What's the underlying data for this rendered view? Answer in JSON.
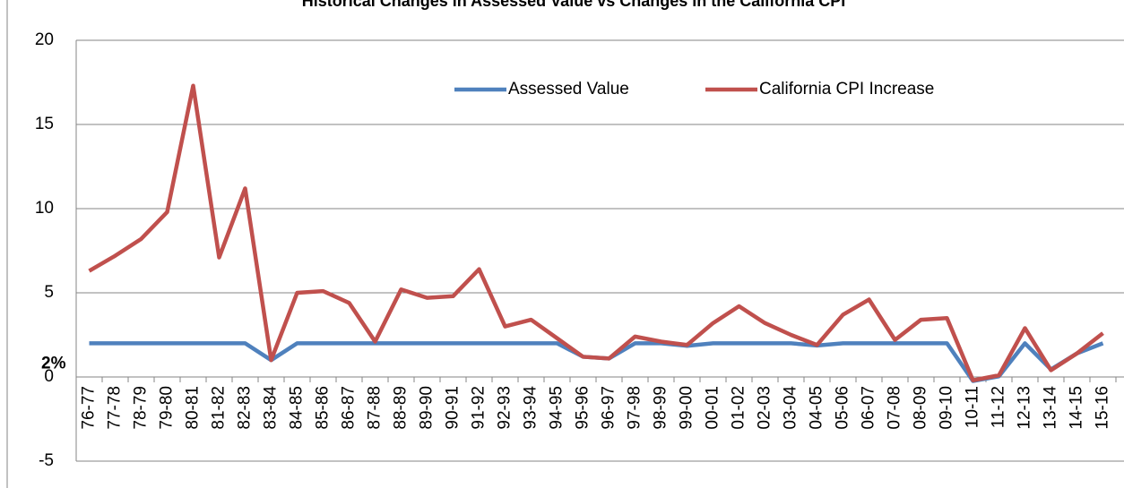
{
  "chart_data": {
    "type": "line",
    "title": "Historical Changes in Assessed Value vs Changes in the California CPI",
    "annotations": [
      "2%"
    ],
    "categories": [
      "76-77",
      "77-78",
      "78-79",
      "79-80",
      "80-81",
      "81-82",
      "82-83",
      "83-84",
      "84-85",
      "85-86",
      "86-87",
      "87-88",
      "88-89",
      "89-90",
      "90-91",
      "91-92",
      "92-93",
      "93-94",
      "94-95",
      "95-96",
      "96-97",
      "97-98",
      "98-99",
      "99-00",
      "00-01",
      "01-02",
      "02-03",
      "03-04",
      "04-05",
      "05-06",
      "06-07",
      "07-08",
      "08-09",
      "09-10",
      "10-11",
      "11-12",
      "12-13",
      "13-14",
      "14-15",
      "15-16"
    ],
    "series": [
      {
        "name": "Assessed Value",
        "color": "#4f81bd",
        "values": [
          2,
          2,
          2,
          2,
          2,
          2,
          2,
          1,
          2,
          2,
          2,
          2,
          2,
          2,
          2,
          2,
          2,
          2,
          2,
          1.2,
          1.1,
          2,
          2,
          1.85,
          2,
          2,
          2,
          2,
          1.87,
          2,
          2,
          2,
          2,
          2,
          -0.24,
          0.04,
          2,
          0.45,
          1.4,
          2
        ]
      },
      {
        "name": "California CPI Increase",
        "color": "#c0504d",
        "values": [
          6.3,
          7.2,
          8.2,
          9.8,
          17.3,
          7.1,
          11.2,
          1.0,
          5.0,
          5.1,
          4.4,
          2.1,
          5.2,
          4.7,
          4.8,
          6.4,
          3.0,
          3.4,
          2.3,
          1.2,
          1.1,
          2.4,
          2.1,
          1.9,
          3.2,
          4.2,
          3.2,
          2.5,
          1.9,
          3.7,
          4.6,
          2.2,
          3.4,
          3.5,
          -0.2,
          0.1,
          2.9,
          0.4,
          1.4,
          2.6
        ]
      }
    ],
    "ylim": [
      -5,
      20
    ],
    "yticks": [
      -5,
      0,
      5,
      10,
      15,
      20
    ],
    "grid": true,
    "legend": "top-right"
  }
}
